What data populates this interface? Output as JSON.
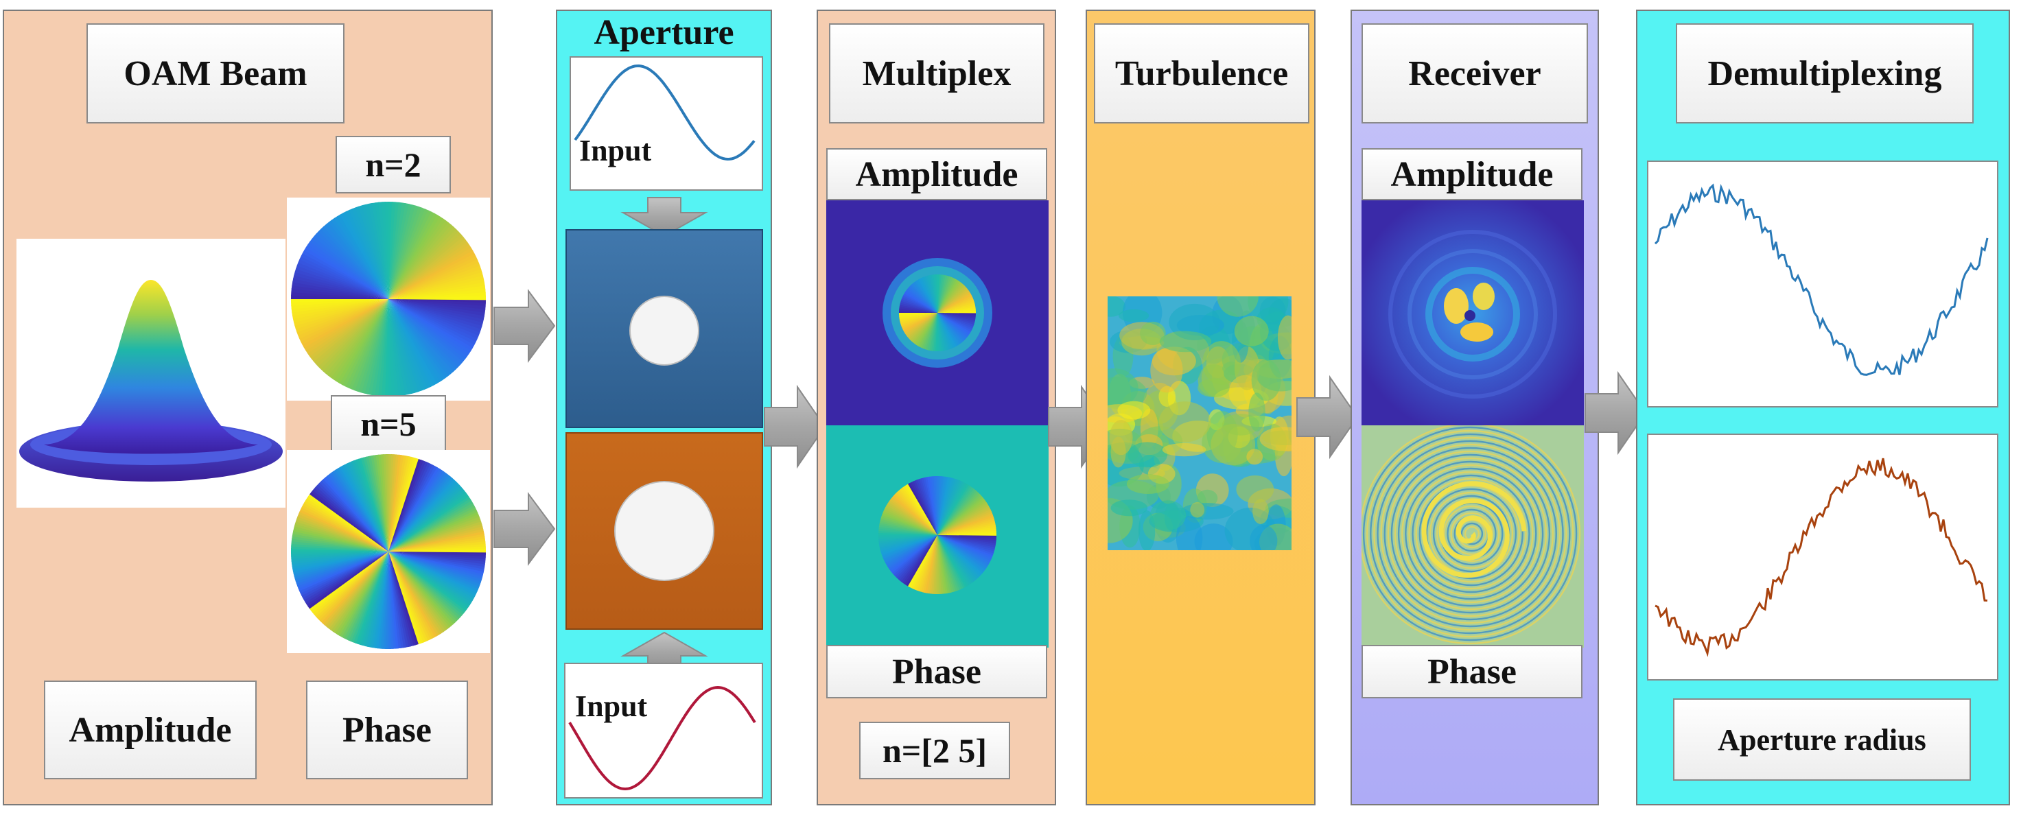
{
  "oam_panel": {
    "title": "OAM Beam",
    "mode_top": "n=2",
    "mode_bottom": "n=5",
    "caption_left": "Amplitude",
    "caption_right": "Phase"
  },
  "aperture_panel": {
    "title": "Aperture",
    "input_top": "Input",
    "input_bottom": "Input"
  },
  "multiplex_panel": {
    "title": "Multiplex",
    "amplitude_label": "Amplitude",
    "phase_label": "Phase",
    "modes": "n=[2 5]"
  },
  "turbulence_panel": {
    "title": "Turbulence"
  },
  "receiver_panel": {
    "title": "Receiver",
    "amplitude_label": "Amplitude",
    "phase_label": "Phase"
  },
  "demux_panel": {
    "title": "Demultiplexing",
    "caption": "Aperture radius"
  },
  "colors": {
    "oam_bg": "#f5cdb0",
    "aperture_bg": "#55f3f3",
    "turbulence_bg": "#fdc74f",
    "receiver_bg": "#b7b4f7",
    "signal_blue": "#2a7ab8",
    "signal_red": "#b0173a",
    "signal_brown": "#a8420e",
    "arrow_gray": "#a3a3a3"
  }
}
